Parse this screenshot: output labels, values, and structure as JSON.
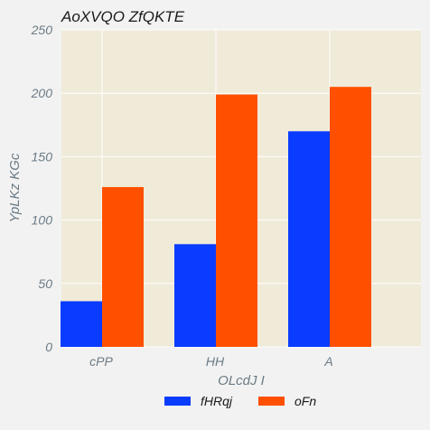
{
  "chart_data": {
    "type": "bar",
    "title": "AoXVQO ZfQKTE",
    "xlabel": "OLcdJ I",
    "ylabel": "YpLKz KGc",
    "categories": [
      "cPP",
      "HH",
      "A"
    ],
    "series": [
      {
        "name": "fHRqj",
        "color": "#0a3cff",
        "values": [
          36,
          81,
          170
        ]
      },
      {
        "name": "oFn",
        "color": "#ff5000",
        "values": [
          126,
          199,
          205
        ]
      }
    ],
    "ylim": [
      0,
      250
    ],
    "yticks": [
      0,
      50,
      100,
      150,
      200,
      250
    ],
    "grid": true,
    "legend_position": "bottom-center",
    "plot_background": "#f0ead8"
  }
}
